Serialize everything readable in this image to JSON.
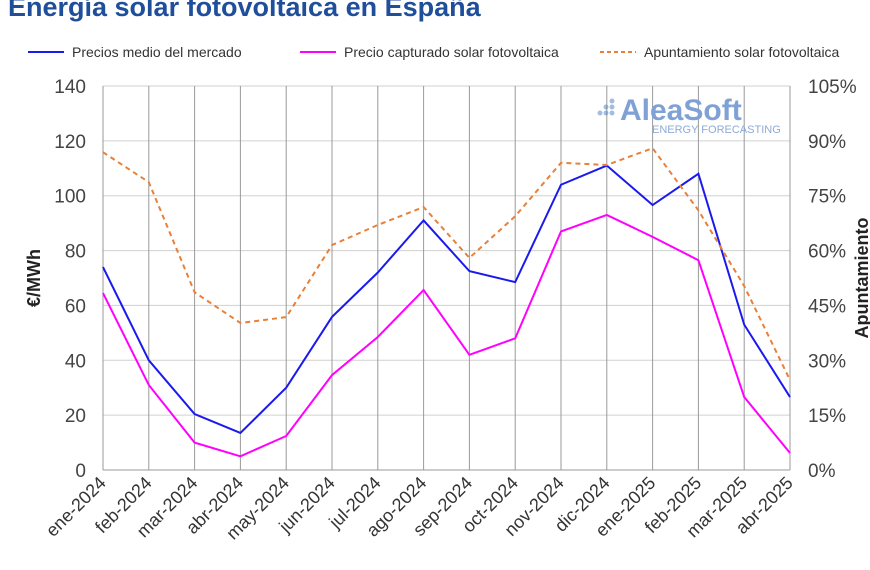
{
  "title": "Energía solar fotovoltaica en España",
  "logo": {
    "name": "AleaSoft",
    "tagline": "ENERGY FORECASTING"
  },
  "colors": {
    "blue": "#1a1aee",
    "magenta": "#ff00ff",
    "orange": "#e8803a",
    "title": "#1f4e9a"
  },
  "chart_data": {
    "type": "line",
    "title": "Energía solar fotovoltaica en España",
    "ylabel": "€/MWh",
    "y2label": "Apuntamiento",
    "ylim": [
      0,
      140
    ],
    "y2lim": [
      0,
      105
    ],
    "yticks": [
      "0",
      "20",
      "40",
      "60",
      "80",
      "100",
      "120",
      "140"
    ],
    "y2ticks": [
      "0%",
      "15%",
      "30%",
      "45%",
      "60%",
      "75%",
      "90%",
      "105%"
    ],
    "grid": true,
    "legend": "top",
    "categories": [
      "ene-2024",
      "feb-2024",
      "mar-2024",
      "abr-2024",
      "may-2024",
      "jun-2024",
      "jul-2024",
      "ago-2024",
      "sep-2024",
      "oct-2024",
      "nov-2024",
      "dic-2024",
      "ene-2025",
      "feb-2025",
      "mar-2025",
      "abr-2025"
    ],
    "series": [
      {
        "name": "Precios medio del mercado",
        "axis": "left",
        "style": "solid",
        "color": "#1a1aee",
        "values": [
          74,
          40,
          20.4,
          13.5,
          30,
          55.8,
          72,
          91,
          72.5,
          68.5,
          104,
          111,
          96.6,
          108,
          53,
          26.6
        ]
      },
      {
        "name": "Precio capturado solar fotovoltaica",
        "axis": "left",
        "style": "solid",
        "color": "#ff00ff",
        "values": [
          64.5,
          31,
          10,
          5,
          12.4,
          34.6,
          48.5,
          65.6,
          42,
          48,
          87,
          93,
          85,
          76.5,
          26.6,
          6.2
        ]
      },
      {
        "name": "Apuntamiento solar fotovoltaica",
        "axis": "right",
        "style": "dashed",
        "color": "#e8803a",
        "values": [
          86.9,
          78.7,
          48.6,
          40.2,
          41.8,
          61.5,
          67,
          71.9,
          58,
          69.4,
          84,
          83.4,
          88,
          71,
          50.3,
          24.6
        ]
      }
    ]
  }
}
